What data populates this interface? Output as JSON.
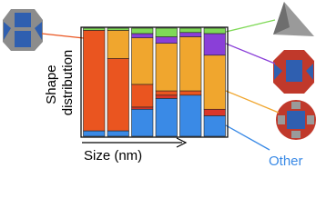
{
  "chart_data": {
    "type": "stacked_bar",
    "y_label_lines": [
      "Shape",
      "distribution"
    ],
    "x_label": "Size (nm)",
    "categories": [
      null,
      null,
      null,
      null,
      null,
      null
    ],
    "ylim": [
      0,
      100
    ],
    "series": [
      {
        "name": "Other",
        "color": "#3a8ae6",
        "values": [
          5,
          5,
          25,
          35,
          38,
          19
        ]
      },
      {
        "color": "#d9362a",
        "values": [
          0,
          0,
          2,
          3,
          0,
          6
        ]
      },
      {
        "color": "#ea5520",
        "values": [
          93,
          67,
          21,
          4,
          4,
          0
        ]
      },
      {
        "color": "#f0a62e",
        "values": [
          0,
          26,
          43,
          44,
          50,
          50
        ]
      },
      {
        "color": "#8a3fd8",
        "values": [
          0,
          0,
          4,
          6,
          4,
          20
        ]
      },
      {
        "color": "#7fd957",
        "values": [
          2,
          2,
          5,
          8,
          4,
          5
        ]
      }
    ]
  }
}
